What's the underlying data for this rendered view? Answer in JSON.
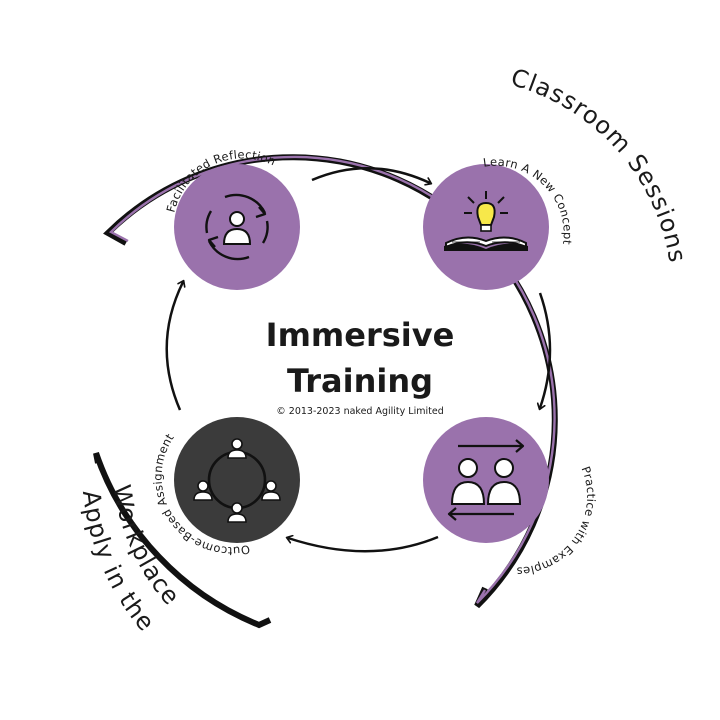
{
  "title": {
    "line1": "Immersive",
    "line2": "Training"
  },
  "copyright": "© 2013-2023 naked Agility Limited",
  "nodes": {
    "facilitated_reflection": "Facilitated Reflection",
    "learn_concept": "Learn A New Concept",
    "practice_examples": "Practice with Examples",
    "outcome_assignment": "Outcome-Based Assignment"
  },
  "arcs": {
    "classroom": "Classroom Sessions",
    "workplace_line1": "Apply in the",
    "workplace_line2": "Workplace"
  },
  "colors": {
    "purple": "#9a72ac",
    "dark": "#3b3b3b",
    "ink": "#111111",
    "bulb": "#f7e84a"
  },
  "icons": {
    "facilitated_reflection": "person-cycle-icon",
    "learn_concept": "lightbulb-book-icon",
    "practice_examples": "people-exchange-icon",
    "outcome_assignment": "team-circle-icon"
  }
}
